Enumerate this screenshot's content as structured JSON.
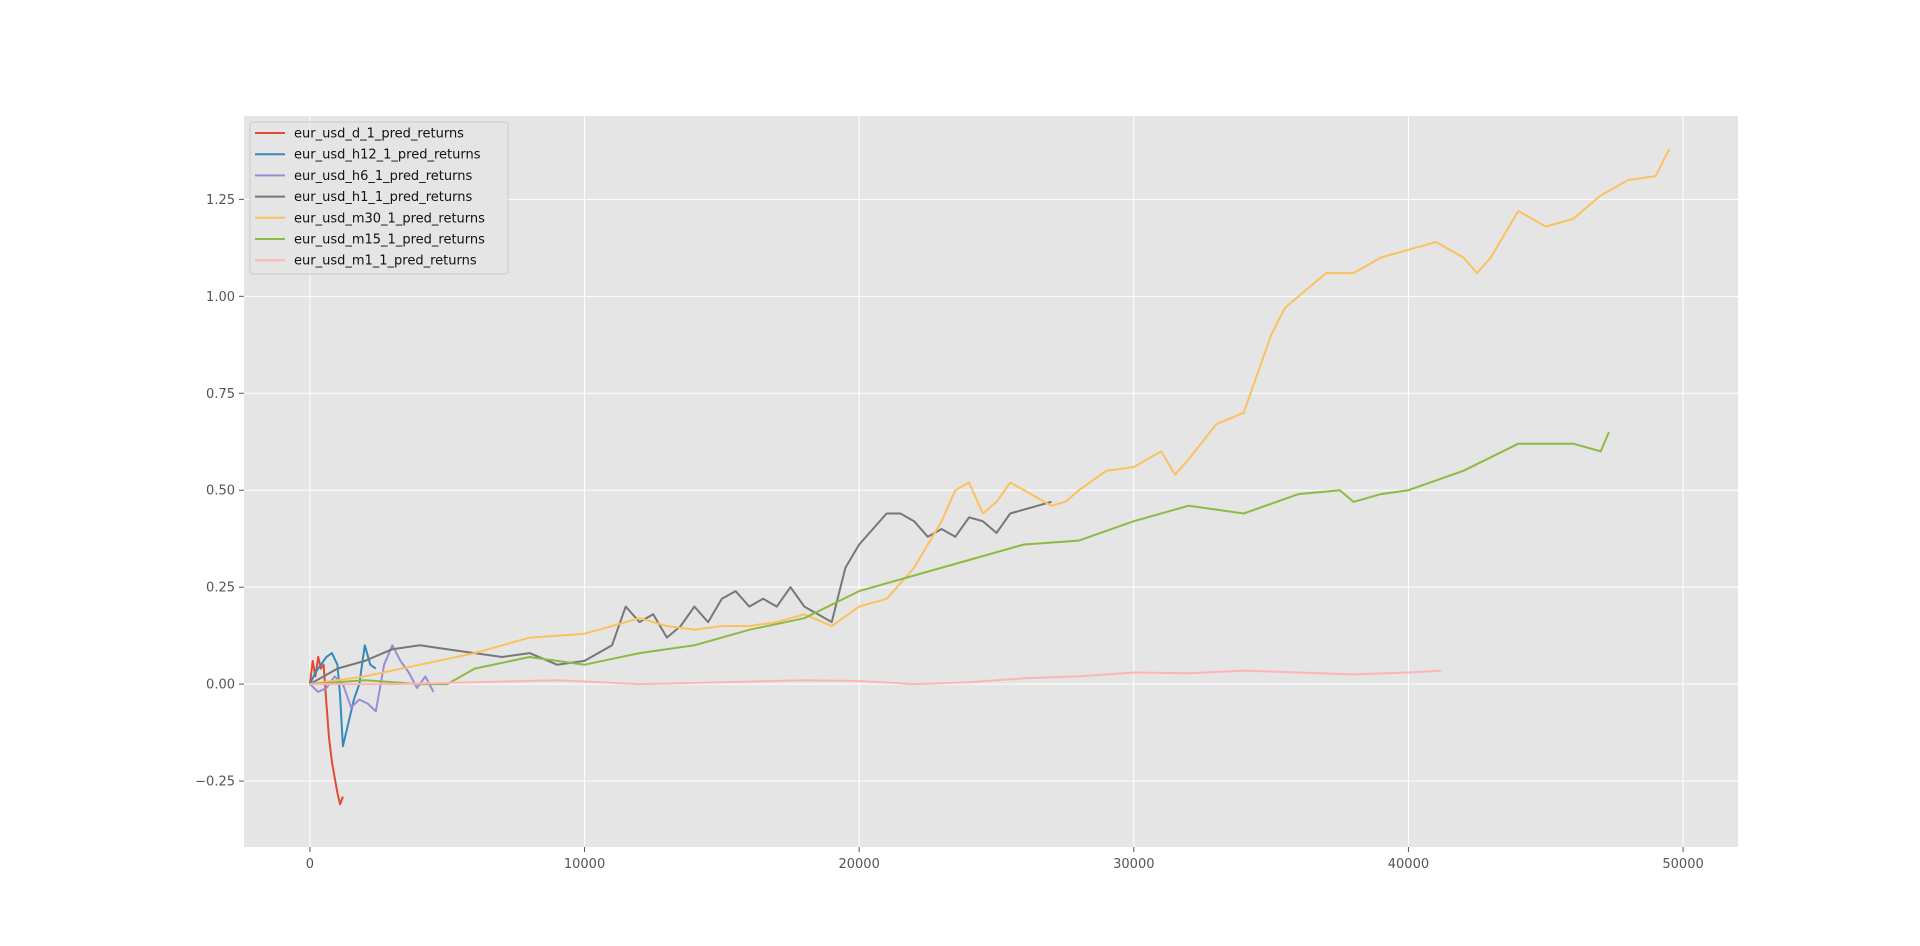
{
  "chart_data": {
    "type": "line",
    "title": "",
    "xlabel": "",
    "ylabel": "",
    "xlim": [
      -2400,
      52000
    ],
    "ylim": [
      -0.42,
      1.465
    ],
    "x_ticks": [
      0,
      10000,
      20000,
      30000,
      40000,
      50000
    ],
    "x_tick_labels": [
      "0",
      "10000",
      "20000",
      "30000",
      "40000",
      "50000"
    ],
    "y_ticks": [
      -0.25,
      0.0,
      0.25,
      0.5,
      0.75,
      1.0,
      1.25
    ],
    "y_tick_labels": [
      "−0.25",
      "0.00",
      "0.25",
      "0.50",
      "0.75",
      "1.00",
      "1.25"
    ],
    "grid": true,
    "legend_position": "upper-left",
    "background": "#e5e5e5",
    "series": [
      {
        "name": "eur_usd_d_1_pred_returns",
        "color": "#e24a33",
        "x": [
          0,
          100,
          200,
          300,
          400,
          500,
          600,
          700,
          800,
          900,
          1000,
          1100,
          1200
        ],
        "y": [
          0.0,
          0.06,
          0.02,
          0.07,
          0.04,
          0.05,
          -0.05,
          -0.14,
          -0.2,
          -0.24,
          -0.28,
          -0.31,
          -0.29
        ]
      },
      {
        "name": "eur_usd_h12_1_pred_returns",
        "color": "#348abd",
        "x": [
          0,
          200,
          400,
          600,
          800,
          1000,
          1100,
          1200,
          1400,
          1600,
          1800,
          2000,
          2200,
          2400
        ],
        "y": [
          0.0,
          0.03,
          0.05,
          0.07,
          0.08,
          0.05,
          -0.03,
          -0.16,
          -0.1,
          -0.04,
          0.0,
          0.1,
          0.05,
          0.04
        ]
      },
      {
        "name": "eur_usd_h6_1_pred_returns",
        "color": "#988ed5",
        "x": [
          0,
          300,
          600,
          900,
          1200,
          1500,
          1800,
          2100,
          2400,
          2700,
          3000,
          3300,
          3600,
          3900,
          4200,
          4500
        ],
        "y": [
          0.0,
          -0.02,
          -0.01,
          0.02,
          0.0,
          -0.06,
          -0.04,
          -0.05,
          -0.07,
          0.05,
          0.1,
          0.06,
          0.03,
          -0.01,
          0.02,
          -0.02
        ]
      },
      {
        "name": "eur_usd_h1_1_pred_returns",
        "color": "#777777",
        "x": [
          0,
          1000,
          2000,
          3000,
          4000,
          5000,
          6000,
          7000,
          8000,
          9000,
          10000,
          11000,
          11500,
          12000,
          12500,
          13000,
          13500,
          14000,
          14500,
          15000,
          15500,
          16000,
          16500,
          17000,
          17500,
          18000,
          18500,
          19000,
          19500,
          20000,
          20500,
          21000,
          21500,
          22000,
          22500,
          23000,
          23500,
          24000,
          24500,
          25000,
          25500,
          26000,
          26500,
          27000
        ],
        "y": [
          0.0,
          0.04,
          0.06,
          0.09,
          0.1,
          0.09,
          0.08,
          0.07,
          0.08,
          0.05,
          0.06,
          0.1,
          0.2,
          0.16,
          0.18,
          0.12,
          0.15,
          0.2,
          0.16,
          0.22,
          0.24,
          0.2,
          0.22,
          0.2,
          0.25,
          0.2,
          0.18,
          0.16,
          0.3,
          0.36,
          0.4,
          0.44,
          0.44,
          0.42,
          0.38,
          0.4,
          0.38,
          0.43,
          0.42,
          0.39,
          0.44,
          0.45,
          0.46,
          0.47
        ]
      },
      {
        "name": "eur_usd_m30_1_pred_returns",
        "color": "#fbc15e",
        "x": [
          0,
          2000,
          4000,
          6000,
          8000,
          10000,
          11000,
          12000,
          13000,
          14000,
          15000,
          16000,
          17000,
          18000,
          19000,
          20000,
          21000,
          22000,
          23000,
          23500,
          24000,
          24500,
          25000,
          25500,
          26000,
          26500,
          27000,
          27500,
          28000,
          29000,
          30000,
          31000,
          31500,
          32000,
          33000,
          34000,
          34500,
          35000,
          35500,
          36000,
          37000,
          38000,
          39000,
          40000,
          41000,
          42000,
          42500,
          43000,
          44000,
          45000,
          46000,
          47000,
          48000,
          49000,
          49500
        ],
        "y": [
          0.0,
          0.02,
          0.05,
          0.08,
          0.12,
          0.13,
          0.15,
          0.17,
          0.15,
          0.14,
          0.15,
          0.15,
          0.16,
          0.18,
          0.15,
          0.2,
          0.22,
          0.3,
          0.42,
          0.5,
          0.52,
          0.44,
          0.47,
          0.52,
          0.5,
          0.48,
          0.46,
          0.47,
          0.5,
          0.55,
          0.56,
          0.6,
          0.54,
          0.58,
          0.67,
          0.7,
          0.8,
          0.9,
          0.97,
          1.0,
          1.06,
          1.06,
          1.1,
          1.12,
          1.14,
          1.1,
          1.06,
          1.1,
          1.22,
          1.18,
          1.2,
          1.26,
          1.3,
          1.31,
          1.38
        ]
      },
      {
        "name": "eur_usd_m15_1_pred_returns",
        "color": "#8eba42",
        "x": [
          0,
          2000,
          4000,
          5000,
          6000,
          8000,
          10000,
          12000,
          14000,
          16000,
          18000,
          20000,
          22000,
          24000,
          26000,
          28000,
          30000,
          32000,
          34000,
          36000,
          37500,
          38000,
          39000,
          40000,
          42000,
          44000,
          46000,
          47000,
          47300
        ],
        "y": [
          0.0,
          0.01,
          0.0,
          0.0,
          0.04,
          0.07,
          0.05,
          0.08,
          0.1,
          0.14,
          0.17,
          0.24,
          0.28,
          0.32,
          0.36,
          0.37,
          0.42,
          0.46,
          0.44,
          0.49,
          0.5,
          0.47,
          0.49,
          0.5,
          0.55,
          0.62,
          0.62,
          0.6,
          0.65
        ]
      },
      {
        "name": "eur_usd_m1_1_pred_returns",
        "color": "#ffb5b8",
        "x": [
          0,
          3000,
          6000,
          9000,
          12000,
          15000,
          18000,
          20000,
          22000,
          24000,
          26000,
          28000,
          30000,
          32000,
          34000,
          36000,
          38000,
          40000,
          41200
        ],
        "y": [
          0.0,
          0.0,
          0.005,
          0.01,
          0.0,
          0.005,
          0.01,
          0.008,
          0.0,
          0.005,
          0.015,
          0.02,
          0.03,
          0.028,
          0.035,
          0.03,
          0.025,
          0.03,
          0.035
        ]
      }
    ]
  }
}
